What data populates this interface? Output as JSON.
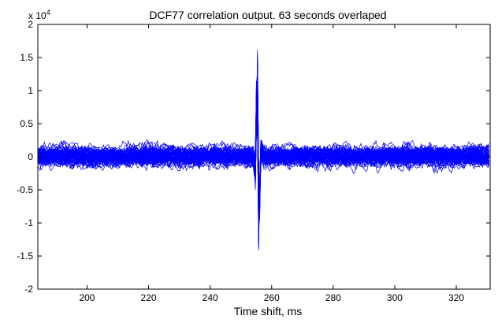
{
  "chart_data": {
    "type": "line",
    "title": "DCF77 correlation output. 63 seconds overlaped",
    "xlabel": "Time shift, ms",
    "ylabel": "",
    "xlim": [
      184,
      331
    ],
    "ylim": [
      -20000,
      20000
    ],
    "y_multiplier": {
      "base": "x 10",
      "exponent": "4"
    },
    "x_ticks": [
      {
        "value": 200,
        "label": "200"
      },
      {
        "value": 220,
        "label": "220"
      },
      {
        "value": 240,
        "label": "240"
      },
      {
        "value": 260,
        "label": "260"
      },
      {
        "value": 280,
        "label": "280"
      },
      {
        "value": 300,
        "label": "300"
      },
      {
        "value": 320,
        "label": "320"
      }
    ],
    "y_ticks": [
      {
        "value": 20000,
        "label": "2"
      },
      {
        "value": 15000,
        "label": "1.5"
      },
      {
        "value": 10000,
        "label": "1"
      },
      {
        "value": 5000,
        "label": "0.5"
      },
      {
        "value": 0,
        "label": "0"
      },
      {
        "value": -5000,
        "label": "-0.5"
      },
      {
        "value": -10000,
        "label": "-1"
      },
      {
        "value": -15000,
        "label": "-1.5"
      },
      {
        "value": -20000,
        "label": "-2"
      }
    ],
    "grid": false,
    "series_count": 63,
    "color": "#0000ff",
    "peak": {
      "x": 255.5,
      "max": 16500,
      "min": -17500
    },
    "noise_band": [
      -2500,
      2500
    ]
  }
}
